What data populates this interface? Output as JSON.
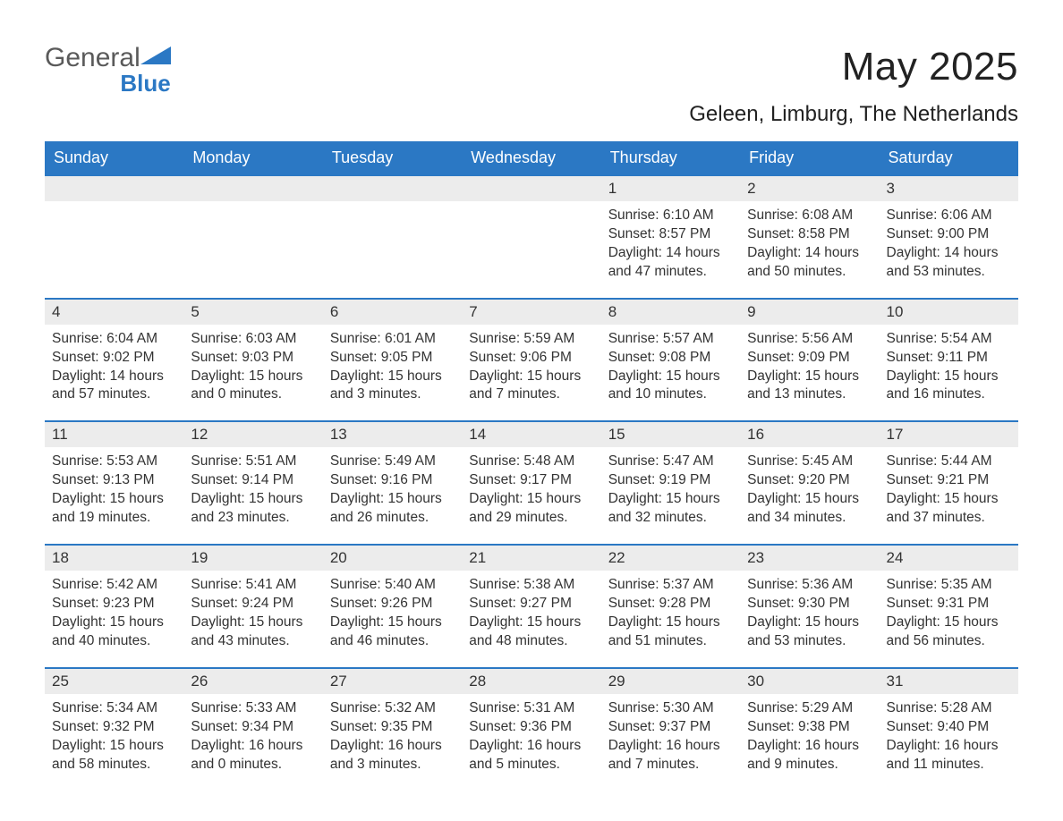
{
  "brand": {
    "part1": "General",
    "part2": "Blue"
  },
  "title": "May 2025",
  "location": "Geleen, Limburg, The Netherlands",
  "colors": {
    "header_bg": "#2b78c4",
    "header_text": "#ffffff",
    "daynum_bg": "#ececec",
    "row_border": "#2b78c4",
    "text": "#333333",
    "page_bg": "#ffffff",
    "logo_gray": "#5a5a5a",
    "logo_blue": "#2b78c4"
  },
  "fonts": {
    "family": "Arial, Helvetica, sans-serif",
    "title_size_pt": 33,
    "location_size_pt": 18,
    "dow_size_pt": 14,
    "daynum_size_pt": 13,
    "detail_size_pt": 11.5
  },
  "days_of_week": [
    "Sunday",
    "Monday",
    "Tuesday",
    "Wednesday",
    "Thursday",
    "Friday",
    "Saturday"
  ],
  "weeks": [
    [
      {
        "empty": true
      },
      {
        "empty": true
      },
      {
        "empty": true
      },
      {
        "empty": true
      },
      {
        "n": "1",
        "sunrise": "6:10 AM",
        "sunset": "8:57 PM",
        "dl1": "14 hours",
        "dl2": "and 47 minutes."
      },
      {
        "n": "2",
        "sunrise": "6:08 AM",
        "sunset": "8:58 PM",
        "dl1": "14 hours",
        "dl2": "and 50 minutes."
      },
      {
        "n": "3",
        "sunrise": "6:06 AM",
        "sunset": "9:00 PM",
        "dl1": "14 hours",
        "dl2": "and 53 minutes."
      }
    ],
    [
      {
        "n": "4",
        "sunrise": "6:04 AM",
        "sunset": "9:02 PM",
        "dl1": "14 hours",
        "dl2": "and 57 minutes."
      },
      {
        "n": "5",
        "sunrise": "6:03 AM",
        "sunset": "9:03 PM",
        "dl1": "15 hours",
        "dl2": "and 0 minutes."
      },
      {
        "n": "6",
        "sunrise": "6:01 AM",
        "sunset": "9:05 PM",
        "dl1": "15 hours",
        "dl2": "and 3 minutes."
      },
      {
        "n": "7",
        "sunrise": "5:59 AM",
        "sunset": "9:06 PM",
        "dl1": "15 hours",
        "dl2": "and 7 minutes."
      },
      {
        "n": "8",
        "sunrise": "5:57 AM",
        "sunset": "9:08 PM",
        "dl1": "15 hours",
        "dl2": "and 10 minutes."
      },
      {
        "n": "9",
        "sunrise": "5:56 AM",
        "sunset": "9:09 PM",
        "dl1": "15 hours",
        "dl2": "and 13 minutes."
      },
      {
        "n": "10",
        "sunrise": "5:54 AM",
        "sunset": "9:11 PM",
        "dl1": "15 hours",
        "dl2": "and 16 minutes."
      }
    ],
    [
      {
        "n": "11",
        "sunrise": "5:53 AM",
        "sunset": "9:13 PM",
        "dl1": "15 hours",
        "dl2": "and 19 minutes."
      },
      {
        "n": "12",
        "sunrise": "5:51 AM",
        "sunset": "9:14 PM",
        "dl1": "15 hours",
        "dl2": "and 23 minutes."
      },
      {
        "n": "13",
        "sunrise": "5:49 AM",
        "sunset": "9:16 PM",
        "dl1": "15 hours",
        "dl2": "and 26 minutes."
      },
      {
        "n": "14",
        "sunrise": "5:48 AM",
        "sunset": "9:17 PM",
        "dl1": "15 hours",
        "dl2": "and 29 minutes."
      },
      {
        "n": "15",
        "sunrise": "5:47 AM",
        "sunset": "9:19 PM",
        "dl1": "15 hours",
        "dl2": "and 32 minutes."
      },
      {
        "n": "16",
        "sunrise": "5:45 AM",
        "sunset": "9:20 PM",
        "dl1": "15 hours",
        "dl2": "and 34 minutes."
      },
      {
        "n": "17",
        "sunrise": "5:44 AM",
        "sunset": "9:21 PM",
        "dl1": "15 hours",
        "dl2": "and 37 minutes."
      }
    ],
    [
      {
        "n": "18",
        "sunrise": "5:42 AM",
        "sunset": "9:23 PM",
        "dl1": "15 hours",
        "dl2": "and 40 minutes."
      },
      {
        "n": "19",
        "sunrise": "5:41 AM",
        "sunset": "9:24 PM",
        "dl1": "15 hours",
        "dl2": "and 43 minutes."
      },
      {
        "n": "20",
        "sunrise": "5:40 AM",
        "sunset": "9:26 PM",
        "dl1": "15 hours",
        "dl2": "and 46 minutes."
      },
      {
        "n": "21",
        "sunrise": "5:38 AM",
        "sunset": "9:27 PM",
        "dl1": "15 hours",
        "dl2": "and 48 minutes."
      },
      {
        "n": "22",
        "sunrise": "5:37 AM",
        "sunset": "9:28 PM",
        "dl1": "15 hours",
        "dl2": "and 51 minutes."
      },
      {
        "n": "23",
        "sunrise": "5:36 AM",
        "sunset": "9:30 PM",
        "dl1": "15 hours",
        "dl2": "and 53 minutes."
      },
      {
        "n": "24",
        "sunrise": "5:35 AM",
        "sunset": "9:31 PM",
        "dl1": "15 hours",
        "dl2": "and 56 minutes."
      }
    ],
    [
      {
        "n": "25",
        "sunrise": "5:34 AM",
        "sunset": "9:32 PM",
        "dl1": "15 hours",
        "dl2": "and 58 minutes."
      },
      {
        "n": "26",
        "sunrise": "5:33 AM",
        "sunset": "9:34 PM",
        "dl1": "16 hours",
        "dl2": "and 0 minutes."
      },
      {
        "n": "27",
        "sunrise": "5:32 AM",
        "sunset": "9:35 PM",
        "dl1": "16 hours",
        "dl2": "and 3 minutes."
      },
      {
        "n": "28",
        "sunrise": "5:31 AM",
        "sunset": "9:36 PM",
        "dl1": "16 hours",
        "dl2": "and 5 minutes."
      },
      {
        "n": "29",
        "sunrise": "5:30 AM",
        "sunset": "9:37 PM",
        "dl1": "16 hours",
        "dl2": "and 7 minutes."
      },
      {
        "n": "30",
        "sunrise": "5:29 AM",
        "sunset": "9:38 PM",
        "dl1": "16 hours",
        "dl2": "and 9 minutes."
      },
      {
        "n": "31",
        "sunrise": "5:28 AM",
        "sunset": "9:40 PM",
        "dl1": "16 hours",
        "dl2": "and 11 minutes."
      }
    ]
  ],
  "labels": {
    "sunrise_prefix": "Sunrise: ",
    "sunset_prefix": "Sunset: ",
    "daylight_prefix": "Daylight: "
  }
}
